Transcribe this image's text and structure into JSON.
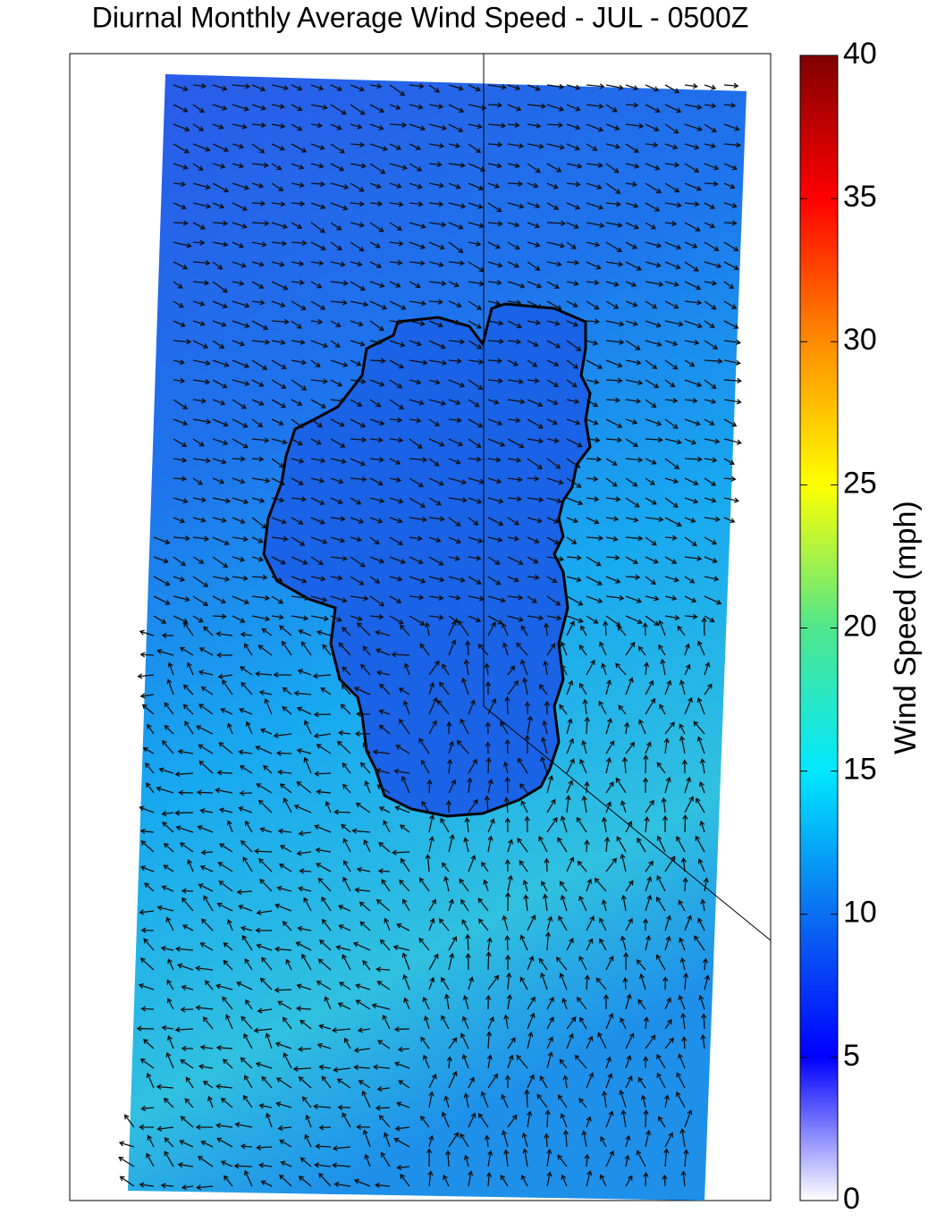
{
  "title": "Diurnal Monthly Average Wind Speed - JUL - 0500Z",
  "colorbar": {
    "label": "Wind Speed (mph)",
    "lim": [
      0,
      40
    ],
    "ticks": [
      0,
      5,
      10,
      15,
      20,
      25,
      30,
      35,
      40
    ],
    "colormap": [
      "#ffffff",
      "#0000ff",
      "#0a6ef0",
      "#00e8ff",
      "#50e68c",
      "#ffff00",
      "#ff8c00",
      "#ff0000",
      "#800000"
    ]
  }
}
